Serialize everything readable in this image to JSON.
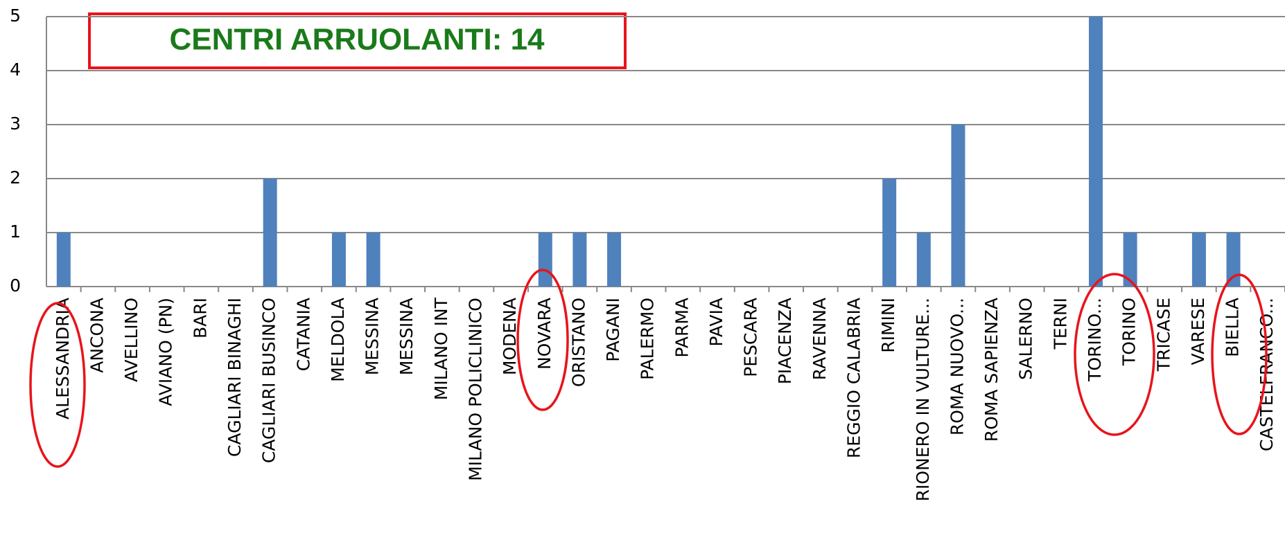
{
  "chart_data": {
    "type": "bar",
    "annotation": "CENTRI ARRUOLANTI: 14",
    "categories": [
      "ALESSANDRIA",
      "ANCONA",
      "AVELLINO",
      "AVIANO (PN)",
      "BARI",
      "CAGLIARI BINAGHI",
      "CAGLIARI BUSINCO",
      "CATANIA",
      "MELDOLA",
      "MESSINA",
      "MESSINA",
      "MILANO INT",
      "MILANO POLICLINICO",
      "MODENA",
      "NOVARA",
      "ORISTANO",
      "PAGANI",
      "PALERMO",
      "PARMA",
      "PAVIA",
      "PESCARA",
      "PIACENZA",
      "RAVENNA",
      "REGGIO CALABRIA",
      "RIMINI",
      "RIONERO IN VULTURE...",
      "ROMA NUOVO...",
      "ROMA SAPIENZA",
      "SALERNO",
      "TERNI",
      "TORINO...",
      "TORINO",
      "TRICASE",
      "VARESE",
      "BIELLA",
      "CASTELFRANCO..."
    ],
    "values": [
      1,
      0,
      0,
      0,
      0,
      0,
      2,
      0,
      1,
      1,
      0,
      0,
      0,
      0,
      1,
      1,
      1,
      0,
      0,
      0,
      0,
      0,
      0,
      0,
      2,
      1,
      3,
      0,
      0,
      0,
      5,
      1,
      0,
      1,
      1,
      0
    ],
    "color": "#4f81bd",
    "ylim": [
      0,
      5
    ],
    "yticks": [
      0,
      1,
      2,
      3,
      4,
      5
    ],
    "grid": true
  }
}
